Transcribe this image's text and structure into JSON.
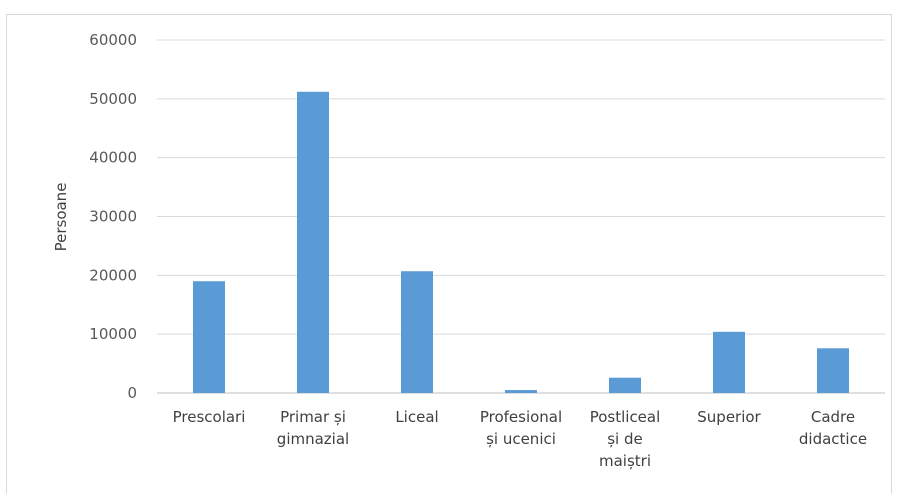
{
  "chart_data": {
    "type": "bar",
    "title": "",
    "xlabel": "",
    "ylabel": "Persoane",
    "ylim": [
      0,
      60000
    ],
    "yticks": [
      0,
      10000,
      20000,
      30000,
      40000,
      50000,
      60000
    ],
    "grid": true,
    "color": "#5b9bd5",
    "categories": [
      [
        "Prescolari"
      ],
      [
        "Primar și",
        "gimnazial"
      ],
      [
        "Liceal"
      ],
      [
        "Profesional",
        "și ucenici"
      ],
      [
        "Postliceal",
        "și de",
        "maiștri"
      ],
      [
        "Superior"
      ],
      [
        "Cadre",
        "didactice"
      ]
    ],
    "values": [
      19000,
      51200,
      20700,
      500,
      2600,
      10400,
      7600
    ]
  }
}
